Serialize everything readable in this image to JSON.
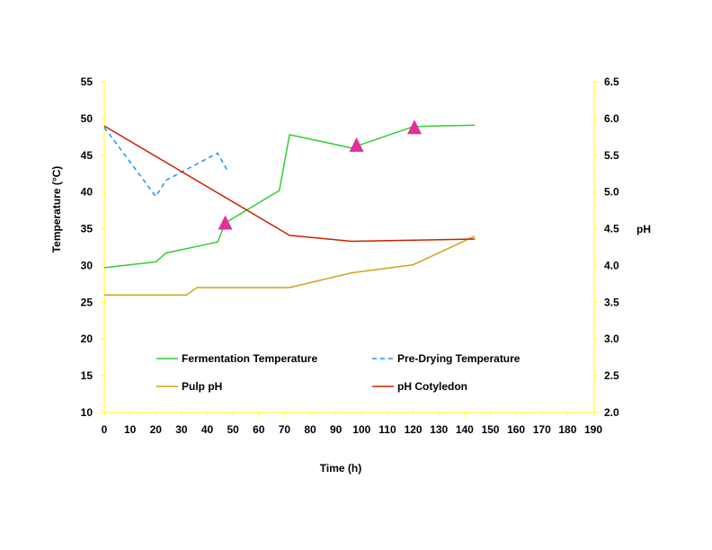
{
  "chart_data": {
    "type": "line",
    "xlabel": "Time (h)",
    "ylabel": "Temperature (°C)",
    "y2label": "pH",
    "xlim": [
      0,
      190
    ],
    "xticks": [
      0,
      10,
      20,
      30,
      40,
      50,
      60,
      70,
      80,
      90,
      100,
      110,
      120,
      130,
      140,
      150,
      160,
      170,
      180,
      190
    ],
    "ylim": [
      10,
      55
    ],
    "yticks": [
      10,
      15,
      20,
      25,
      30,
      35,
      40,
      45,
      50,
      55
    ],
    "y2lim": [
      2.0,
      6.5
    ],
    "y2ticks": [
      "2.0",
      "2.5",
      "3.0",
      "3.5",
      "4.0",
      "4.5",
      "5.0",
      "5.5",
      "6.0",
      "6.5"
    ],
    "grid": false,
    "legend_placement": "bottom-inside",
    "axis_color": "#ffff66",
    "series": [
      {
        "name": "Fermentation Temperature",
        "axis": "left",
        "style": "solid",
        "color": "#33cc33",
        "x": [
          0,
          20,
          24,
          44,
          47,
          68,
          72,
          96,
          120,
          144
        ],
        "y": [
          29.7,
          30.5,
          31.7,
          33.2,
          35.8,
          40.2,
          47.8,
          46.0,
          48.9,
          49.1
        ]
      },
      {
        "name": "Pre-Drying Temperature",
        "axis": "left",
        "style": "dashed",
        "color": "#1e90ff",
        "x": [
          0,
          20,
          24,
          44,
          48
        ],
        "y": [
          48.8,
          39.4,
          41.6,
          45.3,
          42.8
        ]
      },
      {
        "name": "Pulp pH",
        "axis": "right",
        "style": "solid",
        "color": "#d4a017",
        "x": [
          0,
          20,
          32,
          36,
          72,
          96,
          120,
          144
        ],
        "y": [
          3.6,
          3.6,
          3.6,
          3.7,
          3.7,
          3.9,
          4.01,
          4.4
        ]
      },
      {
        "name": "pH Cotyledon",
        "axis": "right",
        "style": "solid",
        "color": "#cc2200",
        "x": [
          0,
          72,
          96,
          144
        ],
        "y": [
          5.9,
          4.41,
          4.33,
          4.36
        ]
      }
    ],
    "markers": {
      "shape": "triangle",
      "color": "#e0309a",
      "axis": "left",
      "x": [
        47,
        98,
        120.5
      ],
      "y": [
        35.8,
        46.4,
        48.8
      ]
    }
  }
}
